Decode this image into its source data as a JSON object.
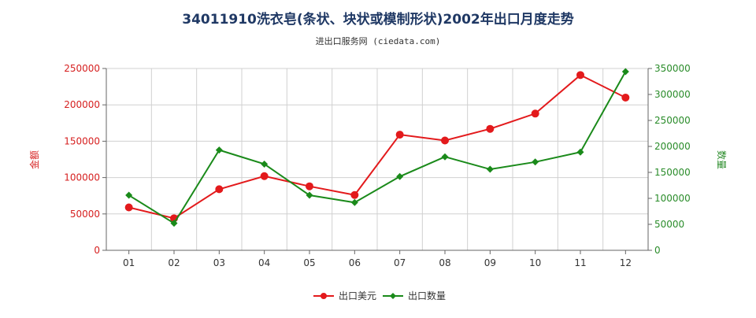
{
  "chart_data": {
    "type": "line",
    "title": "34011910洗衣皂(条状、块状或模制形状)2002年出口月度走势",
    "subtitle": "进出口服务网 (ciedata.com)",
    "categories": [
      "01",
      "02",
      "03",
      "04",
      "05",
      "06",
      "07",
      "08",
      "09",
      "10",
      "11",
      "12"
    ],
    "y_left": {
      "label": "金额",
      "ylim": [
        0,
        250000
      ],
      "ticks": [
        "0",
        "50000",
        "100000",
        "150000",
        "200000",
        "250000"
      ]
    },
    "y_right": {
      "label": "数量",
      "ylim": [
        0,
        350000
      ],
      "ticks": [
        "0",
        "50000",
        "100000",
        "150000",
        "200000",
        "250000",
        "300000",
        "350000"
      ]
    },
    "series": [
      {
        "name": "出口美元",
        "axis": "left",
        "color": "#e31a1c",
        "values": [
          59000,
          44000,
          84000,
          102000,
          88000,
          76000,
          159000,
          151000,
          167000,
          188000,
          241000,
          210000
        ]
      },
      {
        "name": "出口数量",
        "axis": "right",
        "color": "#1a8a1a",
        "values": [
          106000,
          52000,
          193000,
          166000,
          106000,
          92000,
          142000,
          180000,
          156000,
          170000,
          189000,
          344000
        ]
      }
    ],
    "grid": true,
    "legend": "bottom-center"
  }
}
